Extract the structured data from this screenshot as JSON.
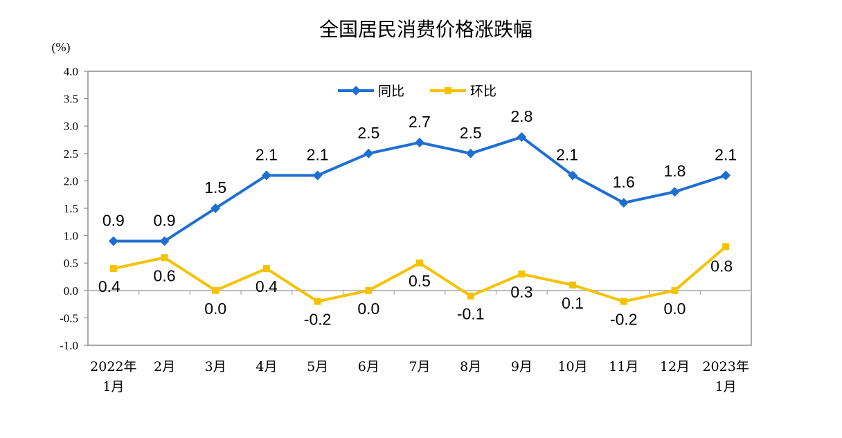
{
  "chart_data": {
    "type": "line",
    "title": "全国居民消费价格涨跌幅",
    "unit_label": "(%)",
    "xlabel": "",
    "ylabel": "",
    "ylim": [
      -1.0,
      4.0
    ],
    "yticks": [
      "4.0",
      "3.5",
      "3.0",
      "2.5",
      "2.0",
      "1.5",
      "1.0",
      "0.5",
      "0.0",
      "-0.5",
      "-1.0"
    ],
    "categories": [
      [
        "2022年",
        "1月"
      ],
      [
        "2月"
      ],
      [
        "3月"
      ],
      [
        "4月"
      ],
      [
        "5月"
      ],
      [
        "6月"
      ],
      [
        "7月"
      ],
      [
        "8月"
      ],
      [
        "9月"
      ],
      [
        "10月"
      ],
      [
        "11月"
      ],
      [
        "12月"
      ],
      [
        "2023年",
        "1月"
      ]
    ],
    "legend_position": "top-center",
    "grid": false,
    "series": [
      {
        "name": "同比",
        "color": "#1f6fd1",
        "marker": "diamond",
        "values": [
          0.9,
          0.9,
          1.5,
          2.1,
          2.1,
          2.5,
          2.7,
          2.5,
          2.8,
          2.1,
          1.6,
          1.8,
          2.1
        ],
        "labels": [
          "0.9",
          "0.9",
          "1.5",
          "2.1",
          "2.1",
          "2.5",
          "2.7",
          "2.5",
          "2.8",
          "2.1",
          "1.6",
          "1.8",
          "2.1"
        ]
      },
      {
        "name": "环比",
        "color": "#f5c200",
        "marker": "square",
        "values": [
          0.4,
          0.6,
          0.0,
          0.4,
          -0.2,
          0.0,
          0.5,
          -0.1,
          0.3,
          0.1,
          -0.2,
          0.0,
          0.8
        ],
        "labels": [
          "0.4",
          "0.6",
          "0.0",
          "0.4",
          "-0.2",
          "0.0",
          "0.5",
          "-0.1",
          "0.3",
          "0.1",
          "-0.2",
          "0.0",
          "0.8"
        ]
      }
    ]
  }
}
